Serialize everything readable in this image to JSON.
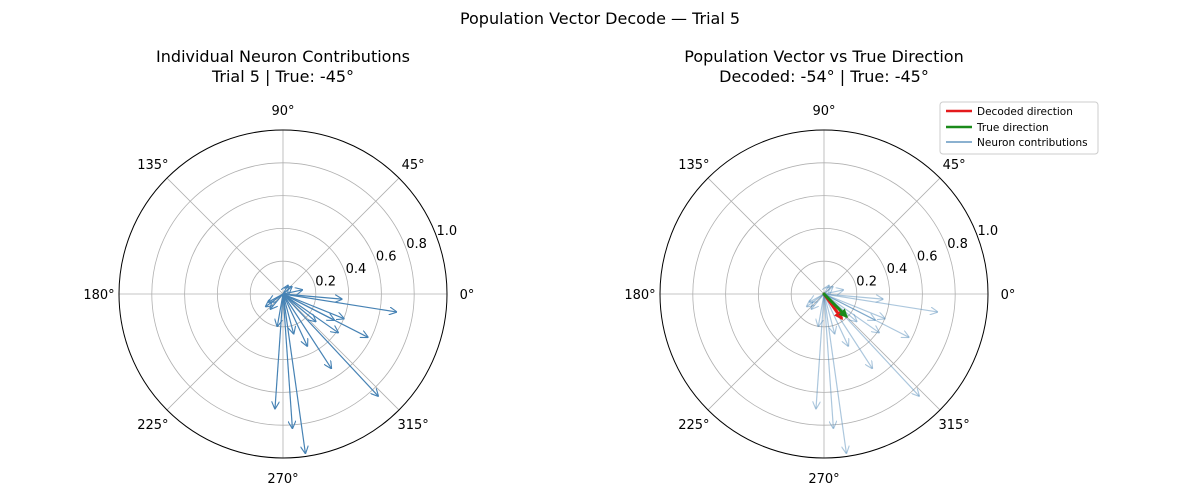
{
  "suptitle": "Population Vector Decode — Trial 5",
  "colors": {
    "neuron": "#4682b4",
    "decoded": "#e41a1c",
    "true": "#1a8a1a",
    "grid": "#b0b0b0",
    "frame": "#000000"
  },
  "angle_ticks": [
    "0°",
    "45°",
    "90°",
    "135°",
    "180°",
    "225°",
    "270°",
    "315°"
  ],
  "radial_ticks": [
    "0.2",
    "0.4",
    "0.6",
    "0.8",
    "1.0"
  ],
  "chart_data": [
    {
      "type": "polar-quiver",
      "title_line1": "Individual Neuron Contributions",
      "title_line2": "Trial 5 | True: -45°",
      "rlim": [
        0,
        1.0
      ],
      "grid": true,
      "neuron_vectors": [
        {
          "angle": -82,
          "r": 0.98
        },
        {
          "angle": -86,
          "r": 0.82
        },
        {
          "angle": -94,
          "r": 0.7
        },
        {
          "angle": -47,
          "r": 0.85
        },
        {
          "angle": -57,
          "r": 0.54
        },
        {
          "angle": -27,
          "r": 0.58
        },
        {
          "angle": -9,
          "r": 0.7
        },
        {
          "angle": -35,
          "r": 0.41
        },
        {
          "angle": -27,
          "r": 0.35
        },
        {
          "angle": -22,
          "r": 0.4
        },
        {
          "angle": -5,
          "r": 0.36
        },
        {
          "angle": -75,
          "r": 0.25
        },
        {
          "angle": -100,
          "r": 0.2
        },
        {
          "angle": -130,
          "r": 0.12
        },
        {
          "angle": -144,
          "r": 0.13
        },
        {
          "angle": -151,
          "r": 0.1
        },
        {
          "angle": 40,
          "r": 0.07
        },
        {
          "angle": 60,
          "r": 0.06
        },
        {
          "angle": 12,
          "r": 0.12
        },
        {
          "angle": -65,
          "r": 0.35
        },
        {
          "angle": -40,
          "r": 0.26
        }
      ]
    },
    {
      "type": "polar-quiver",
      "title_line1": "Population Vector vs True Direction",
      "title_line2": "Decoded: -54° | True: -45°",
      "rlim": [
        0,
        1.0
      ],
      "grid": true,
      "decoded": {
        "angle": -54,
        "r": 0.18
      },
      "true": {
        "angle": -45,
        "r": 0.19
      },
      "legend": {
        "position": "upper right",
        "entries": [
          "Decoded direction",
          "True direction",
          "Neuron contributions"
        ]
      }
    }
  ]
}
